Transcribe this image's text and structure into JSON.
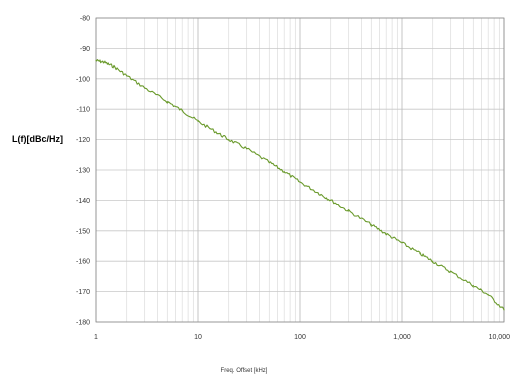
{
  "chart_data": {
    "type": "line",
    "title": "",
    "xlabel": "Freq. Offset [kHz]",
    "ylabel": "L(f)[dBc/Hz]",
    "x_scale": "log",
    "xlim": [
      1,
      10000
    ],
    "ylim": [
      -180,
      -80
    ],
    "x_ticks": [
      1,
      10,
      100,
      1000,
      10000
    ],
    "x_tick_labels": [
      "1",
      "10",
      "100",
      "1,000",
      "10,000"
    ],
    "y_ticks": [
      -80,
      -90,
      -100,
      -110,
      -120,
      -130,
      -140,
      -150,
      -160,
      -170,
      -180
    ],
    "y_tick_labels": [
      "-80",
      "-90",
      "-100",
      "-110",
      "-120",
      "-130",
      "-140",
      "-150",
      "-160",
      "-170",
      "-180"
    ],
    "grid": true,
    "legend": "none",
    "colors": {
      "series": "#6a9a2c",
      "grid": "#c8c8c8",
      "axis": "#888888"
    },
    "series": [
      {
        "x": [
          1,
          1.2,
          1.5,
          2,
          3,
          5,
          7,
          10,
          15,
          20,
          30,
          50,
          70,
          100,
          150,
          200,
          300,
          500,
          700,
          1000,
          1500,
          2000,
          3000,
          5000,
          7000,
          10000
        ],
        "y": [
          -94,
          -94.5,
          -96,
          -99,
          -103,
          -107.5,
          -110.5,
          -114,
          -117.5,
          -120,
          -123,
          -127.5,
          -130.5,
          -134,
          -137.5,
          -140,
          -143.5,
          -148,
          -151,
          -154,
          -157.5,
          -160,
          -163.5,
          -168,
          -171,
          -176
        ]
      }
    ]
  }
}
